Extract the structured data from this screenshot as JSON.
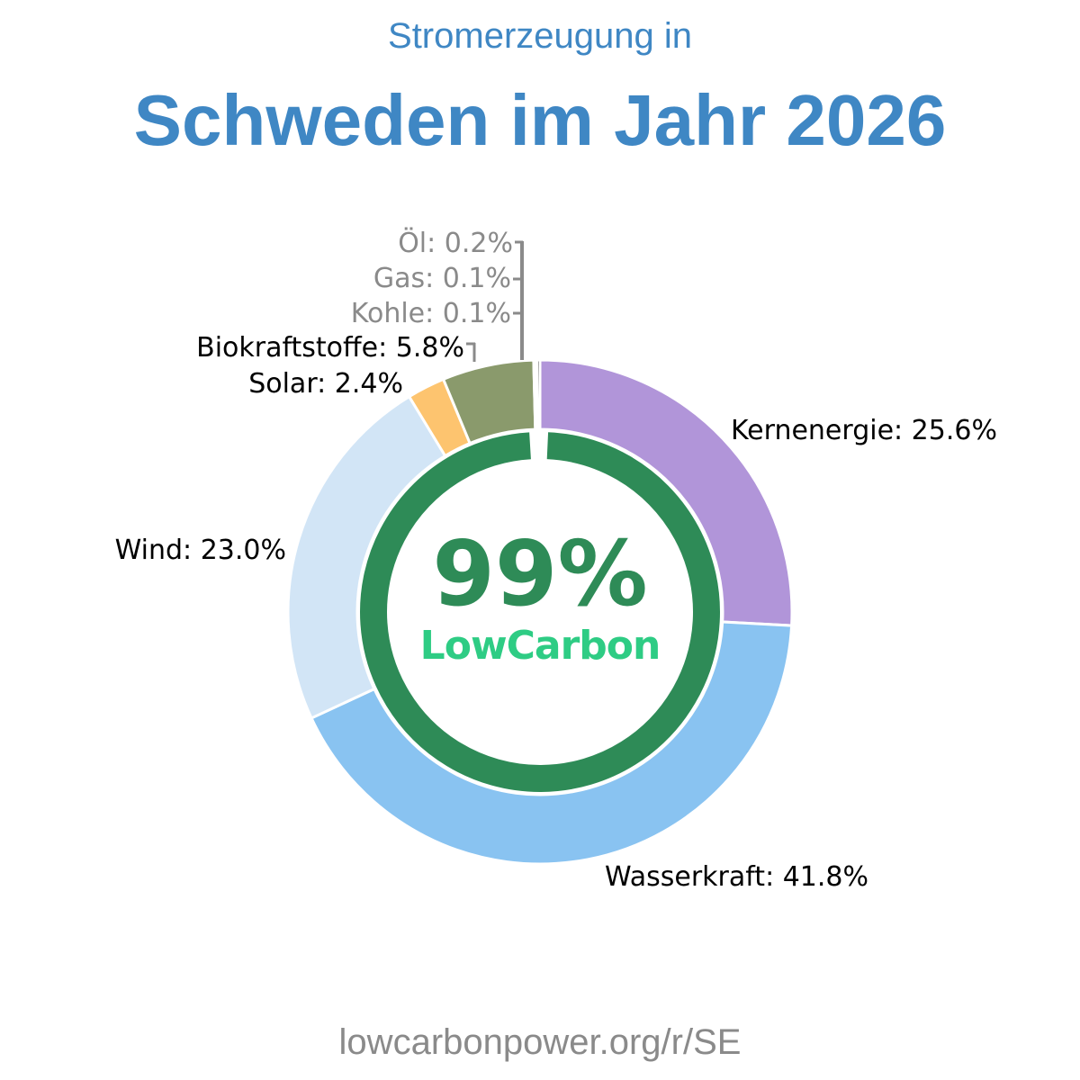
{
  "header": {
    "subtitle": "Stromerzeugung in",
    "title": "Schweden im Jahr 2026"
  },
  "center": {
    "percent": "99%",
    "label": "LowCarbon",
    "low_carbon_share": 99
  },
  "footer": {
    "source": "lowcarbonpower.org/r/SE"
  },
  "colors": {
    "title": "#3f87c4",
    "ring": "#2e8b57",
    "lowcarbon_text": "#2ecc84",
    "leader": "#8a8a8a",
    "label_dark": "#000000",
    "label_gray": "#8a8a8a"
  },
  "chart_data": {
    "type": "pie",
    "title": "Schweden im Jahr 2026",
    "subtitle": "Stromerzeugung in",
    "slices": [
      {
        "name": "Kernenergie",
        "value": 25.6,
        "label": "Kernenergie: 25.6%",
        "color": "#b195d9"
      },
      {
        "name": "Wasserkraft",
        "value": 41.8,
        "label": "Wasserkraft: 41.8%",
        "color": "#89c3f1"
      },
      {
        "name": "Wind",
        "value": 23.0,
        "label": "Wind: 23.0%",
        "color": "#d2e5f6"
      },
      {
        "name": "Solar",
        "value": 2.4,
        "label": "Solar: 2.4%",
        "color": "#fdc46f"
      },
      {
        "name": "Biokraftstoffe",
        "value": 5.8,
        "label": "Biokraftstoffe: 5.8%",
        "color": "#8a9a6c"
      },
      {
        "name": "Kohle",
        "value": 0.1,
        "label": "Kohle: 0.1%",
        "color": "#4a4a4a"
      },
      {
        "name": "Gas",
        "value": 0.1,
        "label": "Gas: 0.1%",
        "color": "#6a6a6a"
      },
      {
        "name": "Öl",
        "value": 0.2,
        "label": "Öl: 0.2%",
        "color": "#555555"
      }
    ]
  }
}
